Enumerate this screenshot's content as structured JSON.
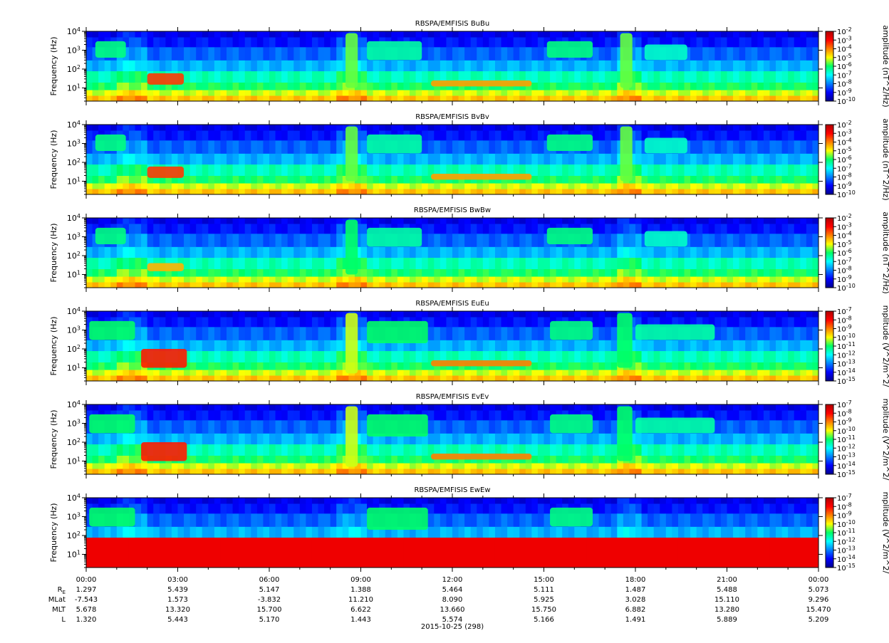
{
  "chart_data": [
    {
      "type": "heatmap",
      "title": "RBSPA/EMFISIS  BuBu",
      "ylabel": "Frequency (Hz)",
      "yscale": "log",
      "ylim": [
        2,
        10000
      ],
      "ytick_labels": [
        "10^1",
        "10^2",
        "10^3",
        "10^4"
      ],
      "colorbar_label": "amplitude (nT^2/Hz)",
      "colorbar_ticks": [
        "-2",
        "-3",
        "-4",
        "-5",
        "-6",
        "-7",
        "-8",
        "-9",
        "-10"
      ],
      "zlim_exp": [
        -10,
        -2
      ],
      "features": [
        {
          "start": 0.3,
          "end": 1.3,
          "fmin": 400,
          "fmax": 3000,
          "level": 0.48
        },
        {
          "start": 2.0,
          "end": 3.2,
          "fmin": 15,
          "fmax": 60,
          "level": 0.82
        },
        {
          "start": 8.5,
          "end": 8.9,
          "fmin": 10,
          "fmax": 8000,
          "level": 0.55
        },
        {
          "start": 9.2,
          "end": 11.0,
          "fmin": 300,
          "fmax": 3000,
          "level": 0.45
        },
        {
          "start": 11.3,
          "end": 14.6,
          "fmin": 12,
          "fmax": 25,
          "level": 0.72
        },
        {
          "start": 15.1,
          "end": 16.6,
          "fmin": 400,
          "fmax": 3000,
          "level": 0.48
        },
        {
          "start": 17.5,
          "end": 17.9,
          "fmin": 10,
          "fmax": 8000,
          "level": 0.55
        },
        {
          "start": 18.3,
          "end": 19.7,
          "fmin": 300,
          "fmax": 2000,
          "level": 0.42
        }
      ]
    },
    {
      "type": "heatmap",
      "title": "RBSPA/EMFISIS  BvBv",
      "ylabel": "Frequency (Hz)",
      "yscale": "log",
      "ylim": [
        2,
        10000
      ],
      "ytick_labels": [
        "10^1",
        "10^2",
        "10^3",
        "10^4"
      ],
      "colorbar_label": "amplitude (nT^2/Hz)",
      "colorbar_ticks": [
        "-2",
        "-3",
        "-4",
        "-5",
        "-6",
        "-7",
        "-8",
        "-9",
        "-10"
      ],
      "zlim_exp": [
        -10,
        -2
      ],
      "features": [
        {
          "start": 0.3,
          "end": 1.3,
          "fmin": 400,
          "fmax": 3000,
          "level": 0.48
        },
        {
          "start": 2.0,
          "end": 3.2,
          "fmin": 15,
          "fmax": 60,
          "level": 0.82
        },
        {
          "start": 8.5,
          "end": 8.9,
          "fmin": 10,
          "fmax": 8000,
          "level": 0.55
        },
        {
          "start": 9.2,
          "end": 11.0,
          "fmin": 300,
          "fmax": 3000,
          "level": 0.45
        },
        {
          "start": 11.3,
          "end": 14.6,
          "fmin": 12,
          "fmax": 25,
          "level": 0.72
        },
        {
          "start": 15.1,
          "end": 16.6,
          "fmin": 400,
          "fmax": 3000,
          "level": 0.48
        },
        {
          "start": 17.5,
          "end": 17.9,
          "fmin": 10,
          "fmax": 8000,
          "level": 0.55
        },
        {
          "start": 18.3,
          "end": 19.7,
          "fmin": 300,
          "fmax": 2000,
          "level": 0.42
        }
      ]
    },
    {
      "type": "heatmap",
      "title": "RBSPA/EMFISIS  BwBw",
      "ylabel": "Frequency (Hz)",
      "yscale": "log",
      "ylim": [
        2,
        10000
      ],
      "ytick_labels": [
        "10^1",
        "10^2",
        "10^3",
        "10^4"
      ],
      "colorbar_label": "amplitude (nT^2/Hz)",
      "colorbar_ticks": [
        "-2",
        "-3",
        "-4",
        "-5",
        "-6",
        "-7",
        "-8",
        "-9",
        "-10"
      ],
      "zlim_exp": [
        -10,
        -2
      ],
      "features": [
        {
          "start": 0.3,
          "end": 1.3,
          "fmin": 400,
          "fmax": 3000,
          "level": 0.48
        },
        {
          "start": 2.0,
          "end": 3.2,
          "fmin": 15,
          "fmax": 40,
          "level": 0.7
        },
        {
          "start": 8.5,
          "end": 8.9,
          "fmin": 10,
          "fmax": 8000,
          "level": 0.5
        },
        {
          "start": 9.2,
          "end": 11.0,
          "fmin": 300,
          "fmax": 3000,
          "level": 0.45
        },
        {
          "start": 15.1,
          "end": 16.6,
          "fmin": 400,
          "fmax": 3000,
          "level": 0.48
        },
        {
          "start": 18.3,
          "end": 19.7,
          "fmin": 300,
          "fmax": 2000,
          "level": 0.42
        }
      ]
    },
    {
      "type": "heatmap",
      "title": "RBSPA/EMFISIS  EuEu",
      "ylabel": "Frequency (Hz)",
      "yscale": "log",
      "ylim": [
        2,
        10000
      ],
      "ytick_labels": [
        "10^1",
        "10^2",
        "10^3",
        "10^4"
      ],
      "colorbar_label": "mplitude (V^2/m^2/",
      "colorbar_ticks": [
        "-7",
        "-8",
        "-9",
        "-10",
        "-11",
        "-12",
        "-13",
        "-14",
        "-15"
      ],
      "zlim_exp": [
        -15,
        -7
      ],
      "features": [
        {
          "start": 0.1,
          "end": 1.6,
          "fmin": 300,
          "fmax": 3000,
          "level": 0.5
        },
        {
          "start": 1.8,
          "end": 3.3,
          "fmin": 10,
          "fmax": 100,
          "level": 0.85
        },
        {
          "start": 8.5,
          "end": 8.9,
          "fmin": 5,
          "fmax": 8000,
          "level": 0.6
        },
        {
          "start": 9.2,
          "end": 11.2,
          "fmin": 200,
          "fmax": 3000,
          "level": 0.5
        },
        {
          "start": 11.3,
          "end": 14.6,
          "fmin": 12,
          "fmax": 25,
          "level": 0.75
        },
        {
          "start": 15.2,
          "end": 16.6,
          "fmin": 300,
          "fmax": 3000,
          "level": 0.48
        },
        {
          "start": 17.4,
          "end": 17.9,
          "fmin": 10,
          "fmax": 8000,
          "level": 0.5
        },
        {
          "start": 18.0,
          "end": 20.6,
          "fmin": 300,
          "fmax": 2000,
          "level": 0.45
        }
      ]
    },
    {
      "type": "heatmap",
      "title": "RBSPA/EMFISIS  EvEv",
      "ylabel": "Frequency (Hz)",
      "yscale": "log",
      "ylim": [
        2,
        10000
      ],
      "ytick_labels": [
        "10^1",
        "10^2",
        "10^3",
        "10^4"
      ],
      "colorbar_label": "mplitude (V^2/m^2/",
      "colorbar_ticks": [
        "-7",
        "-8",
        "-9",
        "-10",
        "-11",
        "-12",
        "-13",
        "-14",
        "-15"
      ],
      "zlim_exp": [
        -15,
        -7
      ],
      "features": [
        {
          "start": 0.1,
          "end": 1.6,
          "fmin": 300,
          "fmax": 3000,
          "level": 0.5
        },
        {
          "start": 1.8,
          "end": 3.3,
          "fmin": 10,
          "fmax": 100,
          "level": 0.85
        },
        {
          "start": 8.5,
          "end": 8.9,
          "fmin": 5,
          "fmax": 8000,
          "level": 0.6
        },
        {
          "start": 9.2,
          "end": 11.2,
          "fmin": 200,
          "fmax": 3000,
          "level": 0.5
        },
        {
          "start": 11.3,
          "end": 14.6,
          "fmin": 12,
          "fmax": 25,
          "level": 0.75
        },
        {
          "start": 15.2,
          "end": 16.6,
          "fmin": 300,
          "fmax": 3000,
          "level": 0.48
        },
        {
          "start": 17.4,
          "end": 17.9,
          "fmin": 10,
          "fmax": 8000,
          "level": 0.5
        },
        {
          "start": 18.0,
          "end": 20.6,
          "fmin": 300,
          "fmax": 2000,
          "level": 0.45
        }
      ]
    },
    {
      "type": "heatmap",
      "title": "RBSPA/EMFISIS  EwEw",
      "ylabel": "Frequency (Hz)",
      "yscale": "log",
      "ylim": [
        2,
        10000
      ],
      "ytick_labels": [
        "10^1",
        "10^2",
        "10^3",
        "10^4"
      ],
      "colorbar_label": "mplitude (V^2/m^2/",
      "colorbar_ticks": [
        "-7",
        "-8",
        "-9",
        "-10",
        "-11",
        "-12",
        "-13",
        "-14",
        "-15"
      ],
      "zlim_exp": [
        -15,
        -7
      ],
      "saturated_low_band": true,
      "features": [
        {
          "start": 0.1,
          "end": 1.6,
          "fmin": 300,
          "fmax": 3000,
          "level": 0.5
        },
        {
          "start": 9.2,
          "end": 11.2,
          "fmin": 200,
          "fmax": 3000,
          "level": 0.5
        },
        {
          "start": 15.2,
          "end": 16.6,
          "fmin": 300,
          "fmax": 3000,
          "level": 0.48
        }
      ]
    }
  ],
  "x_axis": {
    "unit_hours": [
      0,
      24
    ],
    "tick_labels": [
      "00:00",
      "03:00",
      "06:00",
      "09:00",
      "12:00",
      "15:00",
      "18:00",
      "21:00",
      "00:00"
    ],
    "date_label": "2015-10-25 (298)"
  },
  "ephemeris": {
    "row_labels": [
      "R",
      "MLat",
      "MLT",
      "L"
    ],
    "re_subscript": "E",
    "rows": [
      [
        "1.297",
        "5.439",
        "5.147",
        "1.388",
        "5.464",
        "5.111",
        "1.487",
        "5.488",
        "5.073"
      ],
      [
        "-7.543",
        "1.573",
        "-3.832",
        "11.210",
        "8.090",
        "5.925",
        "3.028",
        "15.110",
        "9.296"
      ],
      [
        "5.678",
        "13.320",
        "15.700",
        "6.622",
        "13.660",
        "15.750",
        "6.882",
        "13.280",
        "15.470"
      ],
      [
        "1.320",
        "5.443",
        "5.170",
        "1.443",
        "5.574",
        "5.166",
        "1.491",
        "5.889",
        "5.209"
      ]
    ]
  }
}
